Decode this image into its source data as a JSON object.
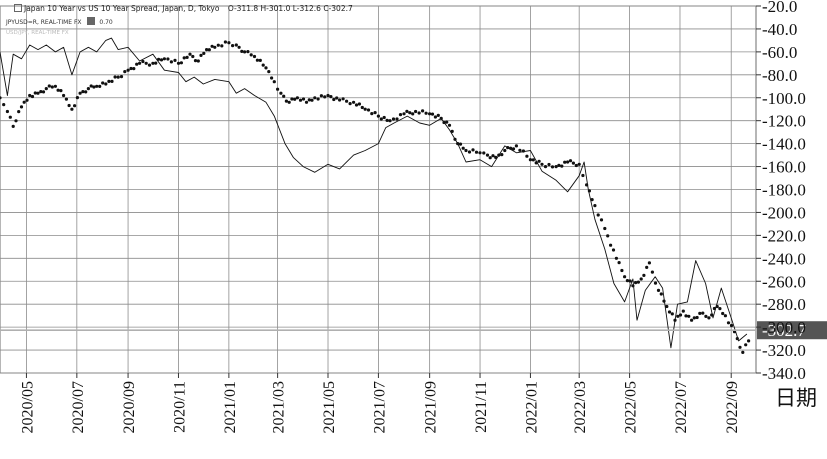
{
  "header": {
    "title": "Japan 10 Year vs US 10 Year Spread, Japan, D, Tokyo",
    "ohlc": "O-311.8  H-301.0  L-312.6  C-302.7",
    "subtitle": "JPYUSD=R, REAL-TIME FX",
    "subtitle_value": "0.70",
    "ghost_text": "USD/JPY, REAL-TIME FX"
  },
  "colors": {
    "grid": "#8c8c8c",
    "line": "#111111",
    "dots": "#111111",
    "last_box": "#555555",
    "last_text": "#ffffff",
    "last_line": "#b0b0b0"
  },
  "chart_data": {
    "type": "line",
    "title": "Japan 10 Year vs US 10 Year Spread, Japan, D, Tokyo",
    "xlabel": "日期",
    "ylabel": "",
    "ylim": [
      -340,
      -20
    ],
    "y_ticks": [
      -20,
      -40,
      -60,
      -80,
      -100,
      -120,
      -140,
      -160,
      -180,
      -200,
      -220,
      -240,
      -260,
      -280,
      -300,
      -320,
      -340
    ],
    "y_tick_labels": [
      "-20.0",
      "-40.0",
      "-60.0",
      "-80.0",
      "-100.0",
      "-120.0",
      "-140.0",
      "-160.0",
      "-180.0",
      "-200.0",
      "-220.0",
      "-240.0",
      "-260.0",
      "-280.0",
      "-300.0",
      "-320.0",
      "-340.0"
    ],
    "x_range": [
      "2020-03-30",
      "2022-10-01"
    ],
    "x_ticks": [
      "2020-05-01",
      "2020-07-01",
      "2020-09-01",
      "2020-11-01",
      "2021-01-01",
      "2021-03-01",
      "2021-05-01",
      "2021-07-01",
      "2021-09-01",
      "2021-11-01",
      "2022-01-01",
      "2022-03-01",
      "2022-05-01",
      "2022-07-01",
      "2022-09-01"
    ],
    "x_tick_labels": [
      "2020/05",
      "2020/07",
      "2020/09",
      "2020/11",
      "2021/01",
      "2021/03",
      "2021/05",
      "2021/07",
      "2021/09",
      "2021/11",
      "2022/01",
      "2022/03",
      "2022/05",
      "2022/07",
      "2022/09"
    ],
    "grid": true,
    "last_value": -302.7,
    "last_value_label": "-302.7",
    "series": [
      {
        "style": "line",
        "points": [
          [
            "2020-03-30",
            -60
          ],
          [
            "2020-04-08",
            -98
          ],
          [
            "2020-04-15",
            -62
          ],
          [
            "2020-04-25",
            -66
          ],
          [
            "2020-05-05",
            -54
          ],
          [
            "2020-05-15",
            -58
          ],
          [
            "2020-05-25",
            -54
          ],
          [
            "2020-06-05",
            -60
          ],
          [
            "2020-06-15",
            -56
          ],
          [
            "2020-06-25",
            -80
          ],
          [
            "2020-07-05",
            -60
          ],
          [
            "2020-07-15",
            -56
          ],
          [
            "2020-07-25",
            -60
          ],
          [
            "2020-08-05",
            -50
          ],
          [
            "2020-08-12",
            -48
          ],
          [
            "2020-08-20",
            -58
          ],
          [
            "2020-09-01",
            -56
          ],
          [
            "2020-09-15",
            -68
          ],
          [
            "2020-10-01",
            -62
          ],
          [
            "2020-10-15",
            -76
          ],
          [
            "2020-11-01",
            -78
          ],
          [
            "2020-11-10",
            -86
          ],
          [
            "2020-11-20",
            -82
          ],
          [
            "2020-12-01",
            -88
          ],
          [
            "2020-12-15",
            -84
          ],
          [
            "2021-01-01",
            -86
          ],
          [
            "2021-01-10",
            -96
          ],
          [
            "2021-01-20",
            -92
          ],
          [
            "2021-02-01",
            -98
          ],
          [
            "2021-02-15",
            -104
          ],
          [
            "2021-02-25",
            -116
          ],
          [
            "2021-03-10",
            -140
          ],
          [
            "2021-03-20",
            -152
          ],
          [
            "2021-04-01",
            -160
          ],
          [
            "2021-04-15",
            -165
          ],
          [
            "2021-05-01",
            -158
          ],
          [
            "2021-05-15",
            -162
          ],
          [
            "2021-06-01",
            -150
          ],
          [
            "2021-06-15",
            -146
          ],
          [
            "2021-07-01",
            -140
          ],
          [
            "2021-07-10",
            -126
          ],
          [
            "2021-07-20",
            -122
          ],
          [
            "2021-08-05",
            -116
          ],
          [
            "2021-08-20",
            -122
          ],
          [
            "2021-09-01",
            -124
          ],
          [
            "2021-09-15",
            -118
          ],
          [
            "2021-09-25",
            -128
          ],
          [
            "2021-10-05",
            -140
          ],
          [
            "2021-10-15",
            -156
          ],
          [
            "2021-11-01",
            -154
          ],
          [
            "2021-11-15",
            -160
          ],
          [
            "2021-12-01",
            -142
          ],
          [
            "2021-12-15",
            -148
          ],
          [
            "2022-01-01",
            -146
          ],
          [
            "2022-01-15",
            -164
          ],
          [
            "2022-02-01",
            -172
          ],
          [
            "2022-02-15",
            -182
          ],
          [
            "2022-03-01",
            -168
          ],
          [
            "2022-03-07",
            -156
          ],
          [
            "2022-03-12",
            -180
          ],
          [
            "2022-03-20",
            -206
          ],
          [
            "2022-04-01",
            -232
          ],
          [
            "2022-04-12",
            -262
          ],
          [
            "2022-04-25",
            -278
          ],
          [
            "2022-05-05",
            -258
          ],
          [
            "2022-05-10",
            -294
          ],
          [
            "2022-05-20",
            -268
          ],
          [
            "2022-06-01",
            -256
          ],
          [
            "2022-06-10",
            -266
          ],
          [
            "2022-06-20",
            -318
          ],
          [
            "2022-06-28",
            -280
          ],
          [
            "2022-07-10",
            -278
          ],
          [
            "2022-07-20",
            -242
          ],
          [
            "2022-08-01",
            -262
          ],
          [
            "2022-08-10",
            -292
          ],
          [
            "2022-08-20",
            -266
          ],
          [
            "2022-09-01",
            -292
          ],
          [
            "2022-09-10",
            -312
          ],
          [
            "2022-09-20",
            -306
          ]
        ]
      },
      {
        "style": "dots",
        "points": [
          [
            "2020-03-30",
            -100
          ],
          [
            "2020-04-08",
            -112
          ],
          [
            "2020-04-15",
            -125
          ],
          [
            "2020-04-25",
            -108
          ],
          [
            "2020-05-05",
            -98
          ],
          [
            "2020-05-15",
            -96
          ],
          [
            "2020-05-25",
            -92
          ],
          [
            "2020-06-05",
            -90
          ],
          [
            "2020-06-15",
            -98
          ],
          [
            "2020-06-25",
            -110
          ],
          [
            "2020-07-05",
            -96
          ],
          [
            "2020-07-15",
            -92
          ],
          [
            "2020-07-25",
            -90
          ],
          [
            "2020-08-05",
            -88
          ],
          [
            "2020-08-20",
            -82
          ],
          [
            "2020-09-01",
            -76
          ],
          [
            "2020-09-15",
            -70
          ],
          [
            "2020-10-01",
            -70
          ],
          [
            "2020-10-15",
            -66
          ],
          [
            "2020-11-01",
            -70
          ],
          [
            "2020-11-15",
            -62
          ],
          [
            "2020-11-25",
            -68
          ],
          [
            "2020-12-05",
            -58
          ],
          [
            "2020-12-15",
            -56
          ],
          [
            "2021-01-01",
            -52
          ],
          [
            "2021-01-10",
            -54
          ],
          [
            "2021-01-20",
            -60
          ],
          [
            "2021-02-01",
            -64
          ],
          [
            "2021-02-15",
            -74
          ],
          [
            "2021-02-25",
            -86
          ],
          [
            "2021-03-05",
            -96
          ],
          [
            "2021-03-15",
            -104
          ],
          [
            "2021-03-25",
            -100
          ],
          [
            "2021-04-05",
            -104
          ],
          [
            "2021-04-15",
            -100
          ],
          [
            "2021-05-01",
            -98
          ],
          [
            "2021-05-15",
            -102
          ],
          [
            "2021-06-01",
            -104
          ],
          [
            "2021-06-15",
            -110
          ],
          [
            "2021-07-01",
            -116
          ],
          [
            "2021-07-15",
            -120
          ],
          [
            "2021-08-01",
            -114
          ],
          [
            "2021-08-15",
            -112
          ],
          [
            "2021-09-01",
            -114
          ],
          [
            "2021-09-15",
            -118
          ],
          [
            "2021-09-25",
            -124
          ],
          [
            "2021-10-05",
            -140
          ],
          [
            "2021-10-15",
            -146
          ],
          [
            "2021-11-01",
            -148
          ],
          [
            "2021-11-10",
            -150
          ],
          [
            "2021-11-20",
            -152
          ],
          [
            "2021-12-01",
            -146
          ],
          [
            "2021-12-15",
            -142
          ],
          [
            "2022-01-01",
            -154
          ],
          [
            "2022-01-15",
            -158
          ],
          [
            "2022-02-01",
            -160
          ],
          [
            "2022-02-15",
            -156
          ],
          [
            "2022-03-01",
            -158
          ],
          [
            "2022-03-10",
            -176
          ],
          [
            "2022-03-20",
            -194
          ],
          [
            "2022-04-01",
            -214
          ],
          [
            "2022-04-15",
            -240
          ],
          [
            "2022-04-25",
            -256
          ],
          [
            "2022-05-05",
            -264
          ],
          [
            "2022-05-15",
            -258
          ],
          [
            "2022-05-25",
            -244
          ],
          [
            "2022-06-05",
            -268
          ],
          [
            "2022-06-15",
            -282
          ],
          [
            "2022-06-25",
            -294
          ],
          [
            "2022-07-05",
            -286
          ],
          [
            "2022-07-15",
            -294
          ],
          [
            "2022-07-25",
            -288
          ],
          [
            "2022-08-05",
            -292
          ],
          [
            "2022-08-15",
            -282
          ],
          [
            "2022-08-25",
            -290
          ],
          [
            "2022-09-05",
            -304
          ],
          [
            "2022-09-15",
            -322
          ],
          [
            "2022-09-22",
            -312
          ]
        ]
      }
    ]
  }
}
